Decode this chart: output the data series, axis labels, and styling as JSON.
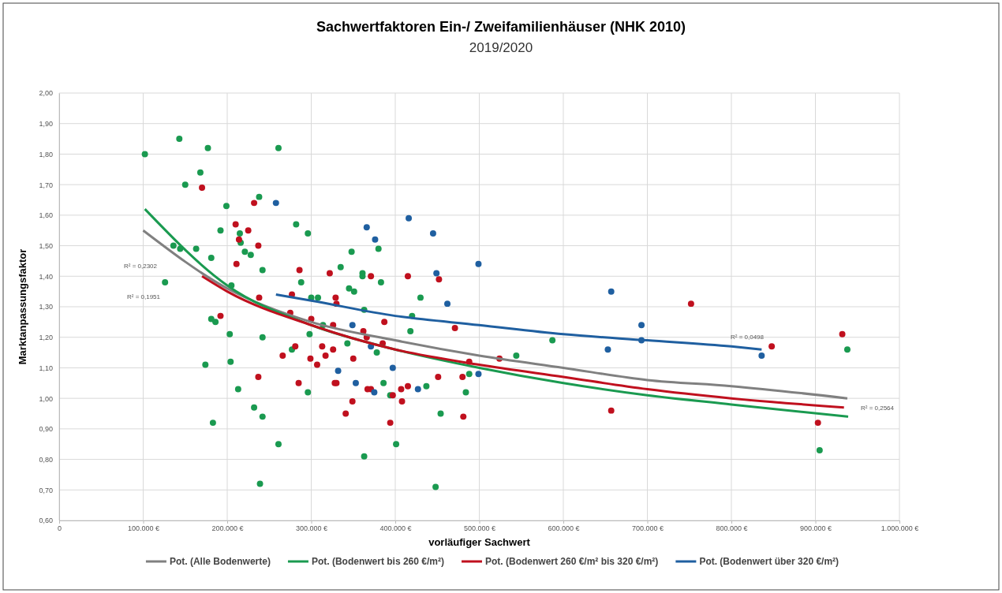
{
  "chart_data": {
    "type": "scatter",
    "title": "Sachwertfaktoren Ein-/ Zweifamilienhäuser (NHK 2010)",
    "subtitle": "2019/2020",
    "xlabel": "vorläufiger Sachwert",
    "ylabel": "Marktanpassungsfaktor",
    "xlim": [
      0,
      1000000
    ],
    "ylim": [
      0.6,
      2.0
    ],
    "xticks": [
      {
        "value": 0,
        "label": "0"
      },
      {
        "value": 100000,
        "label": "100.000 €"
      },
      {
        "value": 200000,
        "label": "200.000 €"
      },
      {
        "value": 300000,
        "label": "300.000 €"
      },
      {
        "value": 400000,
        "label": "400.000 €"
      },
      {
        "value": 500000,
        "label": "500.000 €"
      },
      {
        "value": 600000,
        "label": "600.000 €"
      },
      {
        "value": 700000,
        "label": "700.000 €"
      },
      {
        "value": 800000,
        "label": "800.000 €"
      },
      {
        "value": 900000,
        "label": "900.000 €"
      },
      {
        "value": 1000000,
        "label": "1.000.000 €"
      }
    ],
    "yticks": [
      {
        "value": 0.6,
        "label": "0,60"
      },
      {
        "value": 0.7,
        "label": "0,70"
      },
      {
        "value": 0.8,
        "label": "0,80"
      },
      {
        "value": 0.9,
        "label": "0,90"
      },
      {
        "value": 1.0,
        "label": "1,00"
      },
      {
        "value": 1.1,
        "label": "1,10"
      },
      {
        "value": 1.2,
        "label": "1,20"
      },
      {
        "value": 1.3,
        "label": "1,30"
      },
      {
        "value": 1.4,
        "label": "1,40"
      },
      {
        "value": 1.5,
        "label": "1,50"
      },
      {
        "value": 1.6,
        "label": "1,60"
      },
      {
        "value": 1.7,
        "label": "1,70"
      },
      {
        "value": 1.8,
        "label": "1,80"
      },
      {
        "value": 1.9,
        "label": "1,90"
      },
      {
        "value": 2.0,
        "label": "2,00"
      }
    ],
    "grid": true,
    "legend": "bottom",
    "marker": "circle",
    "series": [
      {
        "color": "#1a9a50",
        "x": [
          102000,
          143000,
          177000,
          261000,
          168000,
          150000,
          238000,
          199000,
          282000,
          192000,
          215000,
          136000,
          144000,
          163000,
          216000,
          221000,
          228000,
          181000,
          242000,
          126000,
          205000,
          181000,
          186000,
          203000,
          242000,
          174000,
          204000,
          213000,
          232000,
          242000,
          183000,
          261000,
          277000,
          239000,
          363000,
          401000,
          448000,
          296000,
          348000,
          380000,
          335000,
          361000,
          361000,
          383000,
          288000,
          345000,
          351000,
          430000,
          300000,
          308000,
          363000,
          420000,
          298000,
          418000,
          314000,
          343000,
          378000,
          587000,
          544000,
          488000,
          484000,
          454000,
          437000,
          386000,
          296000,
          394000,
          938000,
          905000
        ],
        "values": [
          1.8,
          1.85,
          1.82,
          1.82,
          1.74,
          1.7,
          1.66,
          1.63,
          1.57,
          1.55,
          1.54,
          1.5,
          1.49,
          1.49,
          1.51,
          1.48,
          1.47,
          1.46,
          1.42,
          1.38,
          1.37,
          1.26,
          1.25,
          1.21,
          1.2,
          1.11,
          1.12,
          1.03,
          0.97,
          0.94,
          0.92,
          0.85,
          1.16,
          0.72,
          0.81,
          0.85,
          0.71,
          1.54,
          1.48,
          1.49,
          1.43,
          1.41,
          1.4,
          1.38,
          1.38,
          1.36,
          1.35,
          1.33,
          1.33,
          1.33,
          1.29,
          1.27,
          1.21,
          1.22,
          1.24,
          1.18,
          1.15,
          1.19,
          1.14,
          1.08,
          1.02,
          0.95,
          1.04,
          1.05,
          1.02,
          1.01,
          1.16,
          0.83
        ]
      },
      {
        "color": "#c0101e",
        "x": [
          170000,
          232000,
          210000,
          225000,
          214000,
          237000,
          211000,
          238000,
          192000,
          266000,
          237000,
          277000,
          275000,
          281000,
          285000,
          286000,
          322000,
          371000,
          415000,
          452000,
          329000,
          330000,
          300000,
          326000,
          387000,
          362000,
          366000,
          471000,
          385000,
          313000,
          326000,
          317000,
          299000,
          307000,
          350000,
          488000,
          524000,
          328000,
          330000,
          367000,
          371000,
          407000,
          415000,
          397000,
          408000,
          349000,
          341000,
          394000,
          451000,
          480000,
          481000,
          752000,
          848000,
          657000,
          932000,
          903000
        ],
        "values": [
          1.69,
          1.64,
          1.57,
          1.55,
          1.52,
          1.5,
          1.44,
          1.33,
          1.27,
          1.14,
          1.07,
          1.34,
          1.28,
          1.17,
          1.05,
          1.42,
          1.41,
          1.4,
          1.4,
          1.39,
          1.33,
          1.31,
          1.26,
          1.24,
          1.25,
          1.22,
          1.2,
          1.23,
          1.18,
          1.17,
          1.16,
          1.14,
          1.13,
          1.11,
          1.13,
          1.12,
          1.13,
          1.05,
          1.05,
          1.03,
          1.03,
          1.03,
          1.04,
          1.01,
          0.99,
          0.99,
          0.95,
          0.92,
          1.07,
          1.07,
          0.94,
          1.31,
          1.17,
          0.96,
          1.21,
          0.92
        ]
      },
      {
        "color": "#1f5fa0",
        "x": [
          258000,
          416000,
          366000,
          376000,
          445000,
          449000,
          499000,
          462000,
          349000,
          371000,
          332000,
          397000,
          353000,
          375000,
          427000,
          499000,
          657000,
          693000,
          693000,
          653000,
          836000
        ],
        "values": [
          1.64,
          1.59,
          1.56,
          1.52,
          1.54,
          1.41,
          1.44,
          1.31,
          1.24,
          1.17,
          1.09,
          1.1,
          1.05,
          1.02,
          1.03,
          1.08,
          1.35,
          1.24,
          1.19,
          1.16,
          1.14
        ]
      },
      {
        "type": "line",
        "name": "Pot. (Alle Bodenwerte)",
        "color": "#808080",
        "marker": "none",
        "x": [
          100000,
          200000,
          300000,
          400000,
          500000,
          600000,
          700000,
          800000,
          938000
        ],
        "values": [
          1.55,
          1.36,
          1.25,
          1.19,
          1.14,
          1.1,
          1.06,
          1.04,
          1.0
        ]
      },
      {
        "type": "line",
        "name": "Pot. (Bodenwert bis 260 €/m²)",
        "color": "#1a9a50",
        "marker": "none",
        "x": [
          102000,
          200000,
          300000,
          400000,
          500000,
          600000,
          700000,
          800000,
          939000
        ],
        "values": [
          1.62,
          1.37,
          1.24,
          1.16,
          1.1,
          1.05,
          1.01,
          0.98,
          0.94
        ]
      },
      {
        "type": "line",
        "name": "Pot. (Bodenwert 260 €/m² bis 320 €/m²)",
        "color": "#c0101e",
        "marker": "none",
        "x": [
          170000,
          200000,
          300000,
          400000,
          500000,
          600000,
          700000,
          800000,
          934000
        ],
        "values": [
          1.4,
          1.35,
          1.24,
          1.16,
          1.11,
          1.07,
          1.03,
          1.0,
          0.97
        ]
      },
      {
        "type": "line",
        "name": "Pot. (Bodenwert über 320 €/m²)",
        "color": "#1f5fa0",
        "marker": "none",
        "x": [
          258000,
          300000,
          400000,
          500000,
          600000,
          700000,
          800000,
          836000
        ],
        "values": [
          1.34,
          1.32,
          1.27,
          1.24,
          1.21,
          1.19,
          1.17,
          1.16
        ]
      }
    ],
    "annotations": [
      "R² = 0,2302",
      "R² = 0,1951",
      "R² = 0,0498",
      "R² = 0,2564"
    ]
  }
}
